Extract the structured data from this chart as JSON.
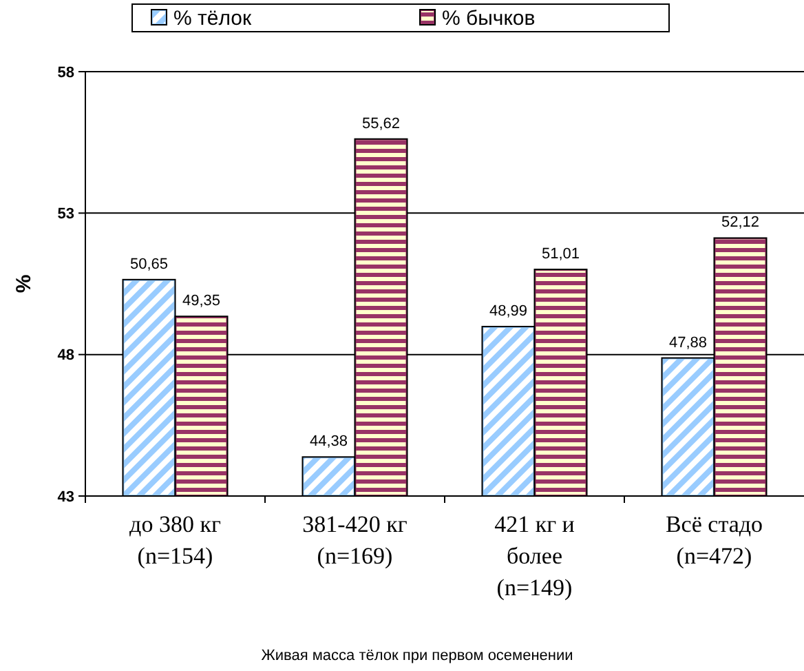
{
  "chart_data": {
    "type": "bar",
    "xlabel": "Живая масса тёлок при первом осеменении",
    "ylabel": "%",
    "categories": [
      "до 380 кг\n(n=154)",
      "381-420 кг\n(n=169)",
      "421 кг и\nболее\n(n=149)",
      "Всё стадо\n(n=472)"
    ],
    "series": [
      {
        "name": "% тёлок",
        "color": "#99ccff",
        "values": [
          50.65,
          44.38,
          48.99,
          47.88
        ],
        "value_labels": [
          "50,65",
          "44,38",
          "48,99",
          "47,88"
        ]
      },
      {
        "name": "% бычков",
        "color": "#993366",
        "values": [
          49.35,
          55.62,
          51.01,
          52.12
        ],
        "value_labels": [
          "49,35",
          "55,62",
          "51,01",
          "52,12"
        ]
      }
    ],
    "ylim": [
      43,
      58
    ],
    "yticks": [
      43,
      48,
      53,
      58
    ],
    "grid": "y",
    "legend": "top"
  }
}
